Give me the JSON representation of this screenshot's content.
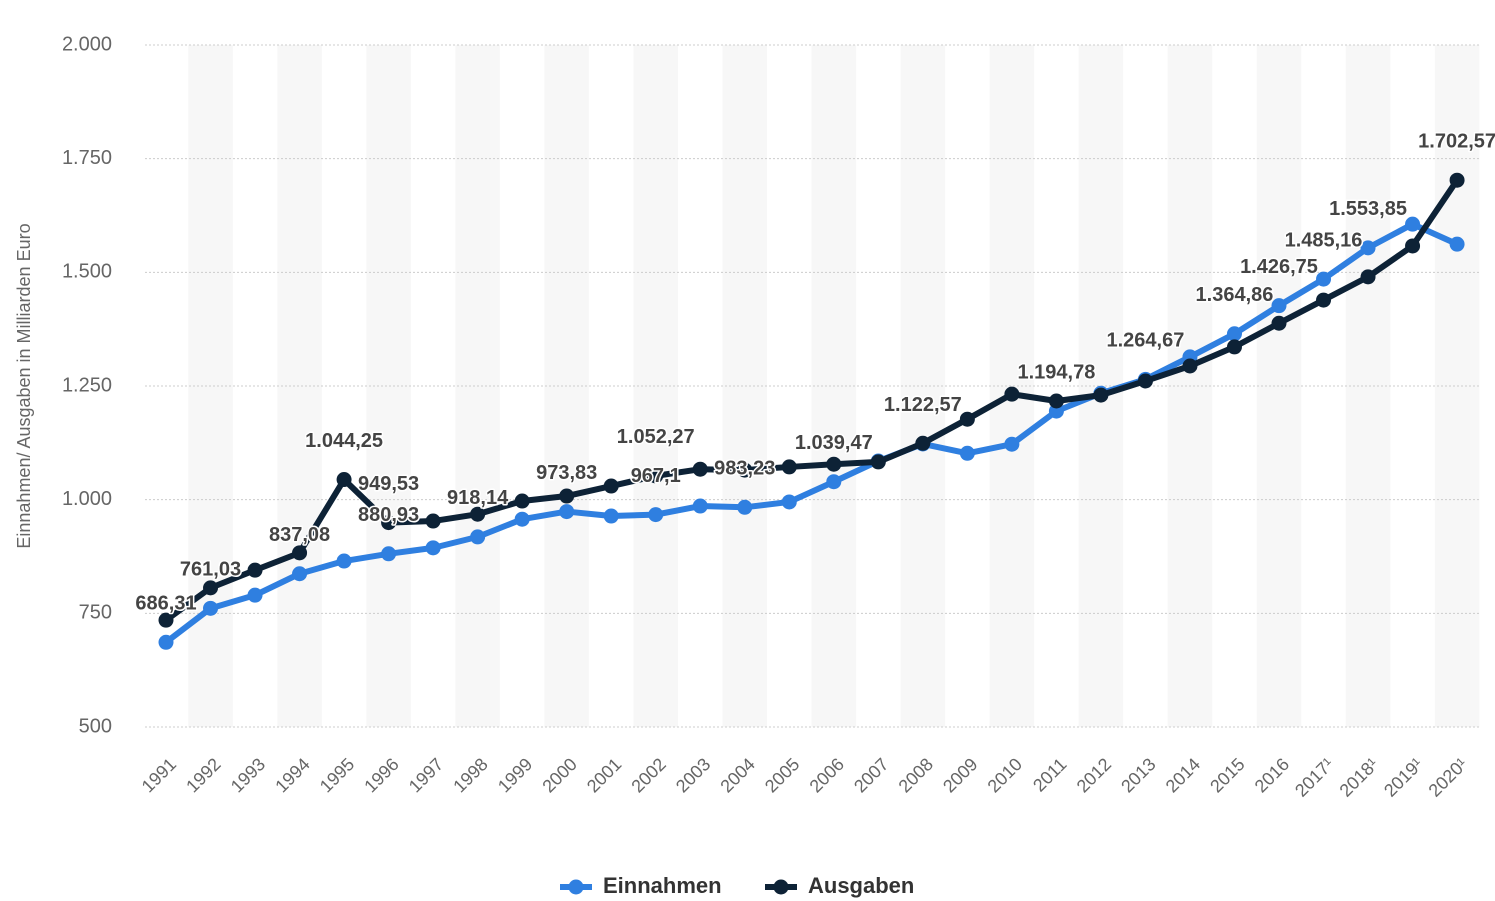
{
  "chart_data": {
    "type": "line",
    "y_axis_label": "Einnahmen/ Ausgaben in Milliarden Euro",
    "categories": [
      "1991",
      "1992",
      "1993",
      "1994",
      "1995",
      "1996",
      "1997",
      "1998",
      "1999",
      "2000",
      "2001",
      "2002",
      "2003",
      "2004",
      "2005",
      "2006",
      "2007",
      "2008",
      "2009",
      "2010",
      "2011",
      "2012",
      "2013",
      "2014",
      "2015",
      "2016",
      "2017¹",
      "2018¹",
      "2019¹",
      "2020¹"
    ],
    "series": [
      {
        "name": "Einnahmen",
        "color": "#2f7fe0",
        "values": [
          686.31,
          761.03,
          790,
          837.08,
          865,
          880.93,
          894,
          918.14,
          957,
          973.83,
          964,
          967.1,
          986,
          983.23,
          995,
          1039.47,
          1085,
          1122.57,
          1102,
          1122,
          1194.78,
          1234,
          1264.67,
          1314,
          1364.86,
          1426.75,
          1485.16,
          1553.85,
          1606,
          1562
        ],
        "value_labels": [
          "686,31",
          "761,03",
          null,
          "837,08",
          null,
          "880,93",
          null,
          "918,14",
          null,
          "973,83",
          null,
          "967,1",
          null,
          "983,23",
          null,
          "1.039,47",
          null,
          "1.122,57",
          null,
          null,
          "1.194,78",
          null,
          "1.264,67",
          null,
          "1.364,86",
          "1.426,75",
          "1.485,16",
          "1.553,85",
          null,
          null
        ]
      },
      {
        "name": "Ausgaben",
        "color": "#0d2236",
        "values": [
          735,
          806,
          845,
          883,
          1044.25,
          949.53,
          953,
          968,
          997,
          1008,
          1030,
          1052.27,
          1067,
          1065,
          1072,
          1078,
          1083,
          1124,
          1177,
          1232,
          1217,
          1230,
          1261,
          1294,
          1336,
          1388,
          1439,
          1490,
          1558,
          1702.57
        ],
        "value_labels": [
          null,
          null,
          null,
          null,
          "1.044,25",
          "949,53",
          null,
          null,
          null,
          null,
          null,
          "1.052,27",
          null,
          null,
          null,
          null,
          null,
          null,
          null,
          null,
          null,
          null,
          null,
          null,
          null,
          null,
          null,
          null,
          null,
          "1.702,57"
        ]
      }
    ],
    "ylim": [
      500,
      2000
    ],
    "yticks": [
      500,
      750,
      {
        "value": 1000,
        "label": "1.000"
      },
      {
        "value": 1250,
        "label": "1.250"
      },
      {
        "value": 1500,
        "label": "1.500"
      },
      {
        "value": 1750,
        "label": "1.750"
      },
      {
        "value": 2000,
        "label": "2.000"
      }
    ],
    "grid": true,
    "legend": "bottom"
  }
}
